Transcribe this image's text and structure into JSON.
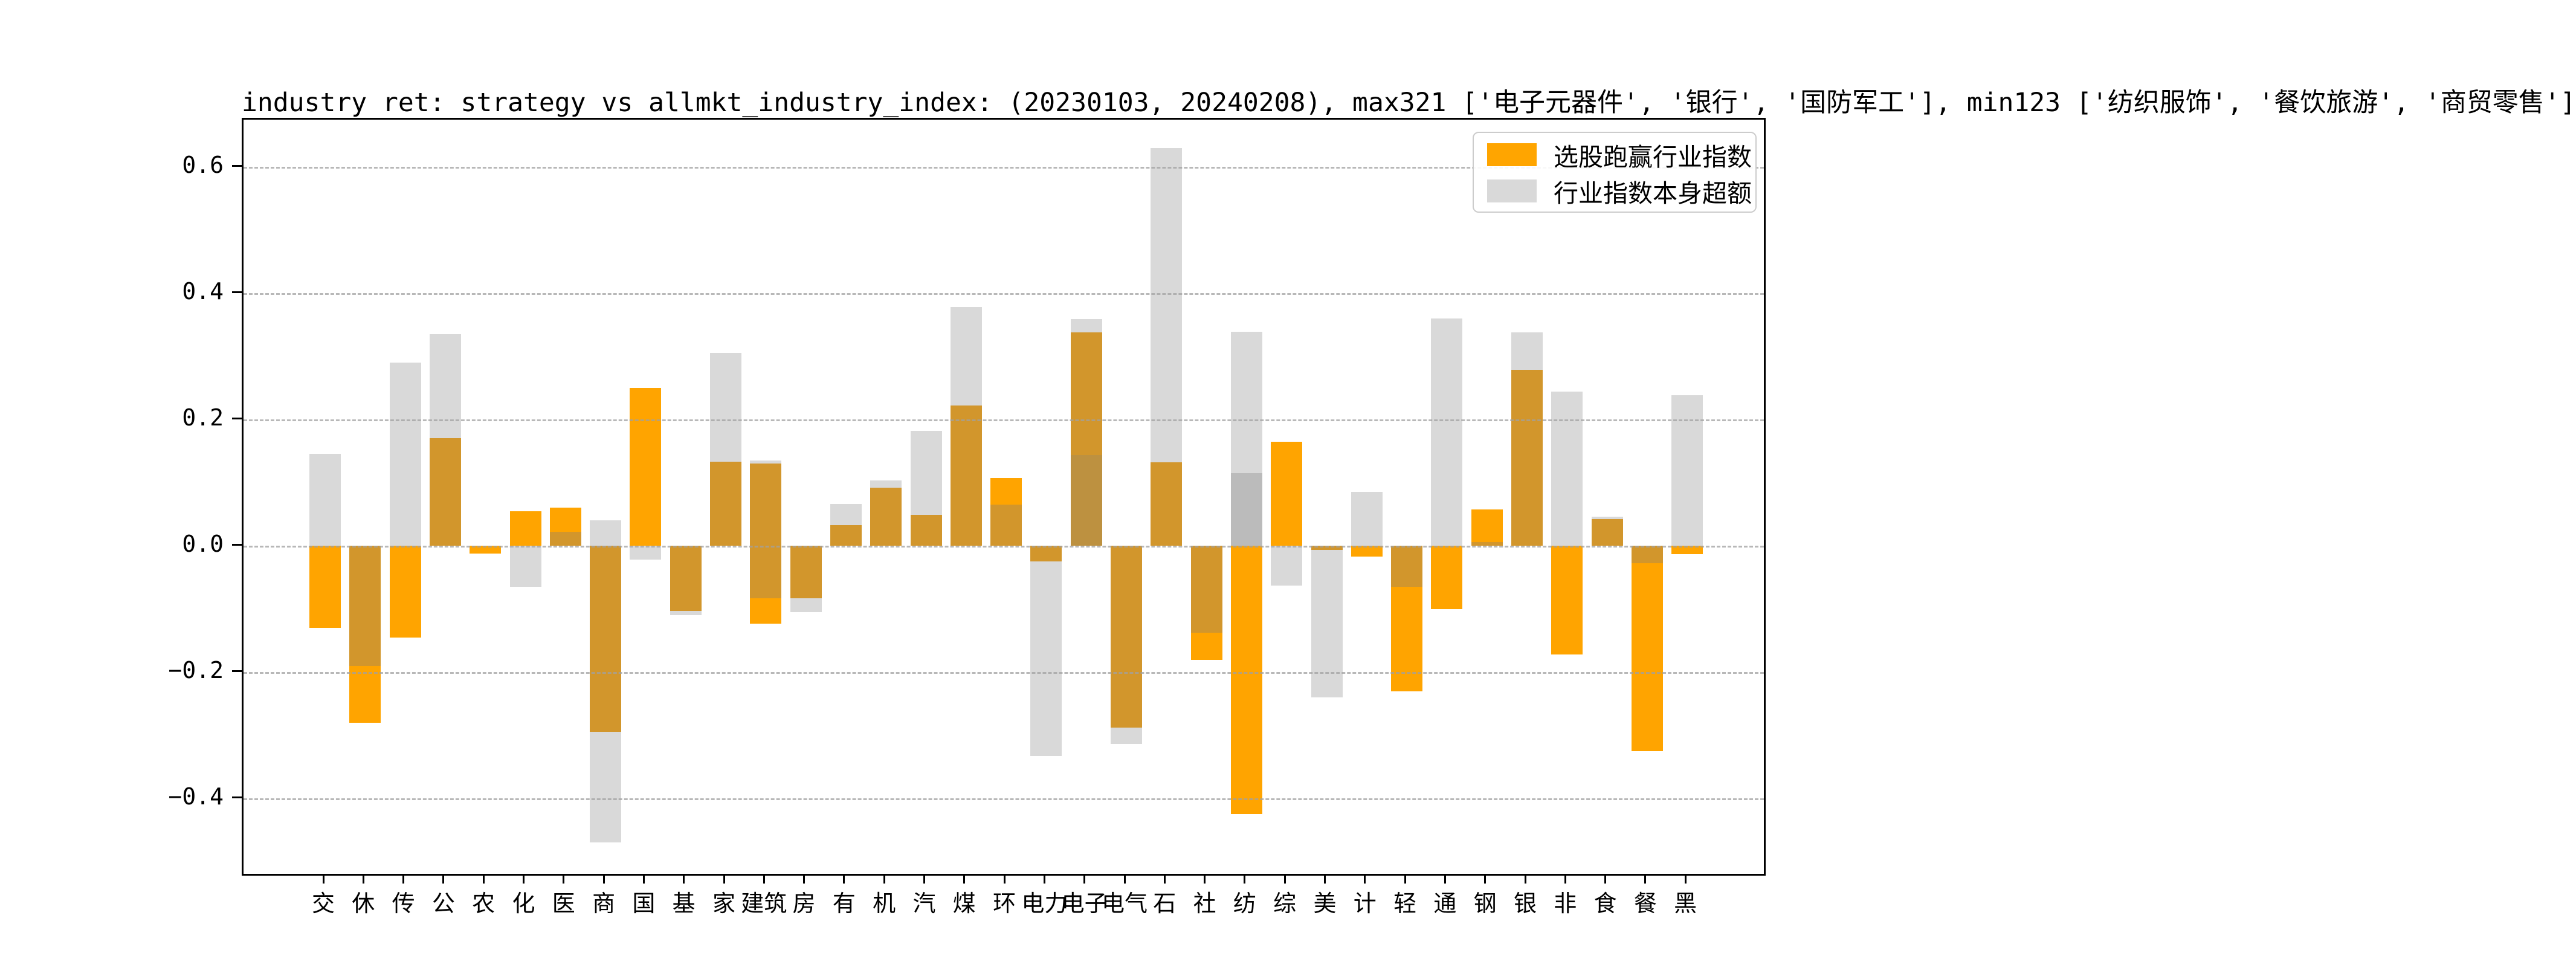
{
  "title": "industry ret: strategy vs allmkt_industry_index: (20230103, 20240208), max321 ['电子元器件', '银行', '国防军工'], min123 ['纺织服饰', '餐饮旅游', '商贸零售']",
  "legend": {
    "items": [
      {
        "label": "选股跑赢行业指数",
        "color": "#FFA500"
      },
      {
        "label": "行业指数本身超额",
        "color": "#D9D9D9"
      }
    ]
  },
  "colors": {
    "o": "#FFA400",
    "g": "#D9D9D9",
    "d": "#D2962C",
    "G": "#BBBBBB",
    "D": "#BD9140",
    "spine": "#000000",
    "grid": "#A8A8A8"
  },
  "axis": {
    "ytick_labels": [
      "0.6",
      "0.4",
      "0.2",
      "0.0",
      "−0.2",
      "−0.4"
    ],
    "ytick_values": [
      0.6,
      0.4,
      0.2,
      0.0,
      -0.2,
      -0.4
    ],
    "ymax": 0.675,
    "ymin": -0.52
  },
  "chart_data": {
    "type": "bar",
    "title": "industry ret: strategy vs allmkt_industry_index: (20230103, 20240208), max321 ['电子元器件', '银行', '国防军工'], min123 ['纺织服饰', '餐饮旅游', '商贸零售']",
    "xlabel": "",
    "ylabel": "",
    "ylim": [
      -0.52,
      0.675
    ],
    "grid": "dashed horizontal",
    "legend_position": "upper right",
    "categories": [
      "交",
      "休",
      "传",
      "公",
      "农",
      "化",
      "医",
      "商",
      "国",
      "基",
      "家",
      "建筑",
      "房",
      "有",
      "机",
      "汽",
      "煤",
      "环",
      "电力",
      "电子",
      "电气",
      "石",
      "社",
      "纺",
      "综",
      "美",
      "计",
      "轻",
      "通",
      "钢",
      "银",
      "非",
      "食",
      "餐",
      "黑"
    ],
    "series": [
      {
        "name": "选股跑赢行业指数",
        "values": [
          -0.13,
          -0.28,
          -0.145,
          0.17,
          -0.012,
          0.055,
          0.06,
          -0.295,
          0.25,
          -0.103,
          0.133,
          -0.123,
          -0.083,
          0.033,
          0.092,
          0.049,
          0.222,
          0.107,
          -0.025,
          0.338,
          -0.288,
          0.132,
          -0.181,
          -0.425,
          0.165,
          -0.007,
          -0.017,
          -0.231,
          -0.1,
          0.057,
          0.278,
          -0.172,
          0.042,
          -0.325,
          -0.013
        ]
      },
      {
        "name": "行业指数本身超额",
        "values": [
          0.145,
          -0.19,
          0.29,
          0.335,
          0.0,
          -0.065,
          0.022,
          -0.47,
          -0.022,
          -0.11,
          0.305,
          0.135,
          -0.105,
          0.066,
          0.103,
          0.182,
          0.378,
          0.065,
          -0.333,
          0.359,
          -0.314,
          0.63,
          -0.138,
          0.339,
          -0.063,
          -0.24,
          0.085,
          -0.065,
          0.36,
          0.006,
          0.338,
          0.244,
          0.046,
          -0.028,
          0.238
        ]
      }
    ],
    "bar_segments": [
      {
        "label": "交",
        "segs": [
          [
            0,
            0.145,
            "g"
          ],
          [
            0,
            -0.13,
            "o"
          ]
        ]
      },
      {
        "label": "休",
        "segs": [
          [
            0,
            -0.19,
            "d"
          ],
          [
            -0.19,
            -0.28,
            "o"
          ]
        ]
      },
      {
        "label": "传",
        "segs": [
          [
            0,
            0.29,
            "g"
          ],
          [
            0,
            -0.145,
            "o"
          ]
        ]
      },
      {
        "label": "公",
        "segs": [
          [
            0.17,
            0.335,
            "g"
          ],
          [
            0,
            0.17,
            "d"
          ]
        ]
      },
      {
        "label": "农",
        "segs": [
          [
            0,
            -0.012,
            "o"
          ]
        ]
      },
      {
        "label": "化",
        "segs": [
          [
            0,
            0.055,
            "o"
          ],
          [
            0,
            -0.065,
            "g"
          ]
        ]
      },
      {
        "label": "医",
        "segs": [
          [
            0.022,
            0.06,
            "o"
          ],
          [
            0,
            0.022,
            "d"
          ]
        ]
      },
      {
        "label": "商",
        "segs": [
          [
            0,
            0.04,
            "g"
          ],
          [
            0,
            -0.295,
            "d"
          ],
          [
            -0.295,
            -0.47,
            "g"
          ]
        ]
      },
      {
        "label": "国",
        "segs": [
          [
            0,
            0.25,
            "o"
          ],
          [
            0,
            -0.022,
            "g"
          ]
        ]
      },
      {
        "label": "基",
        "segs": [
          [
            0,
            -0.103,
            "d"
          ],
          [
            -0.103,
            -0.11,
            "g"
          ]
        ]
      },
      {
        "label": "家",
        "segs": [
          [
            0.133,
            0.305,
            "g"
          ],
          [
            0,
            0.133,
            "d"
          ]
        ]
      },
      {
        "label": "建筑",
        "segs": [
          [
            0.13,
            0.135,
            "g"
          ],
          [
            0,
            0.13,
            "d"
          ],
          [
            0,
            -0.083,
            "d"
          ],
          [
            -0.083,
            -0.123,
            "o"
          ]
        ]
      },
      {
        "label": "房",
        "segs": [
          [
            0,
            -0.083,
            "d"
          ],
          [
            -0.083,
            -0.105,
            "g"
          ]
        ]
      },
      {
        "label": "有",
        "segs": [
          [
            0.033,
            0.066,
            "g"
          ],
          [
            0,
            0.033,
            "d"
          ]
        ]
      },
      {
        "label": "机",
        "segs": [
          [
            0.092,
            0.103,
            "g"
          ],
          [
            0,
            0.092,
            "d"
          ]
        ]
      },
      {
        "label": "汽",
        "segs": [
          [
            0.049,
            0.182,
            "g"
          ],
          [
            0,
            0.049,
            "d"
          ]
        ]
      },
      {
        "label": "煤",
        "segs": [
          [
            0.222,
            0.378,
            "g"
          ],
          [
            0,
            0.222,
            "d"
          ]
        ]
      },
      {
        "label": "环",
        "segs": [
          [
            0.065,
            0.107,
            "o"
          ],
          [
            0,
            0.065,
            "d"
          ]
        ]
      },
      {
        "label": "电力",
        "segs": [
          [
            0,
            -0.025,
            "d"
          ],
          [
            -0.025,
            -0.333,
            "g"
          ]
        ]
      },
      {
        "label": "电子",
        "segs": [
          [
            0.338,
            0.359,
            "g"
          ],
          [
            0.144,
            0.338,
            "d"
          ],
          [
            0,
            0.144,
            "D"
          ]
        ]
      },
      {
        "label": "电气",
        "segs": [
          [
            0,
            -0.288,
            "d"
          ],
          [
            -0.288,
            -0.314,
            "g"
          ]
        ]
      },
      {
        "label": "石",
        "segs": [
          [
            0.132,
            0.63,
            "g"
          ],
          [
            0,
            0.132,
            "d"
          ]
        ]
      },
      {
        "label": "社",
        "segs": [
          [
            0,
            -0.138,
            "d"
          ],
          [
            -0.138,
            -0.181,
            "o"
          ]
        ]
      },
      {
        "label": "纺",
        "segs": [
          [
            0.115,
            0.339,
            "g"
          ],
          [
            0,
            0.115,
            "G"
          ],
          [
            0,
            -0.425,
            "o"
          ]
        ]
      },
      {
        "label": "综",
        "segs": [
          [
            0,
            0.165,
            "o"
          ],
          [
            0,
            -0.063,
            "g"
          ]
        ]
      },
      {
        "label": "美",
        "segs": [
          [
            0,
            -0.007,
            "d"
          ],
          [
            -0.007,
            -0.24,
            "g"
          ]
        ]
      },
      {
        "label": "计",
        "segs": [
          [
            0,
            0.085,
            "g"
          ],
          [
            0,
            -0.017,
            "o"
          ]
        ]
      },
      {
        "label": "轻",
        "segs": [
          [
            0,
            -0.065,
            "d"
          ],
          [
            -0.065,
            -0.231,
            "o"
          ]
        ]
      },
      {
        "label": "通",
        "segs": [
          [
            0,
            0.36,
            "g"
          ],
          [
            0,
            -0.1,
            "o"
          ]
        ]
      },
      {
        "label": "钢",
        "segs": [
          [
            0.006,
            0.057,
            "o"
          ],
          [
            0,
            0.006,
            "d"
          ]
        ]
      },
      {
        "label": "银",
        "segs": [
          [
            0.278,
            0.338,
            "g"
          ],
          [
            0,
            0.278,
            "d"
          ]
        ]
      },
      {
        "label": "非",
        "segs": [
          [
            0,
            0.244,
            "g"
          ],
          [
            0,
            -0.172,
            "o"
          ]
        ]
      },
      {
        "label": "食",
        "segs": [
          [
            0.042,
            0.046,
            "g"
          ],
          [
            0,
            0.042,
            "d"
          ]
        ]
      },
      {
        "label": "餐",
        "segs": [
          [
            0,
            -0.028,
            "d"
          ],
          [
            -0.028,
            -0.325,
            "o"
          ]
        ]
      },
      {
        "label": "黑",
        "segs": [
          [
            0,
            0.238,
            "g"
          ],
          [
            0,
            -0.013,
            "o"
          ]
        ]
      }
    ]
  }
}
